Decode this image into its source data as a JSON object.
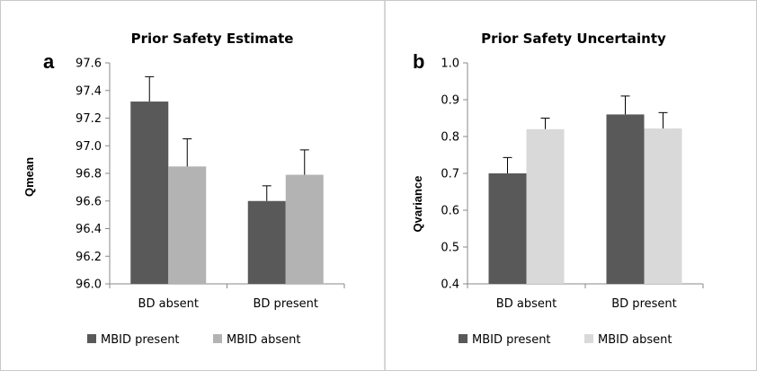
{
  "chart_data": [
    {
      "type": "bar",
      "panel_letter": "a",
      "title": "Prior Safety Estimate",
      "xlabel": "",
      "ylabel": "Qmean",
      "ylim": [
        96.0,
        97.6
      ],
      "yticks": [
        "96.0",
        "96.2",
        "96.4",
        "96.6",
        "96.8",
        "97.0",
        "97.2",
        "97.4",
        "97.6"
      ],
      "categories": [
        "BD absent",
        "BD present"
      ],
      "series": [
        {
          "name": "MBID present",
          "color": "#595959",
          "values": [
            97.32,
            96.6
          ],
          "errors": [
            0.18,
            0.11
          ]
        },
        {
          "name": "MBID absent",
          "color": "#b3b3b3",
          "values": [
            96.85,
            96.79
          ],
          "errors": [
            0.2,
            0.18
          ]
        }
      ],
      "grid": false,
      "legend": "bottom"
    },
    {
      "type": "bar",
      "panel_letter": "b",
      "title": "Prior Safety Uncertainty",
      "xlabel": "",
      "ylabel": "Qvariance",
      "ylim": [
        0.4,
        1.0
      ],
      "yticks": [
        "0.4",
        "0.5",
        "0.6",
        "0.7",
        "0.8",
        "0.9",
        "1.0"
      ],
      "categories": [
        "BD absent",
        "BD present"
      ],
      "series": [
        {
          "name": "MBID present",
          "color": "#595959",
          "values": [
            0.7,
            0.86
          ],
          "errors": [
            0.043,
            0.05
          ]
        },
        {
          "name": "MBID absent",
          "color": "#d9d9d9",
          "values": [
            0.82,
            0.822
          ],
          "errors": [
            0.03,
            0.043
          ]
        }
      ],
      "grid": false,
      "legend": "bottom"
    }
  ]
}
